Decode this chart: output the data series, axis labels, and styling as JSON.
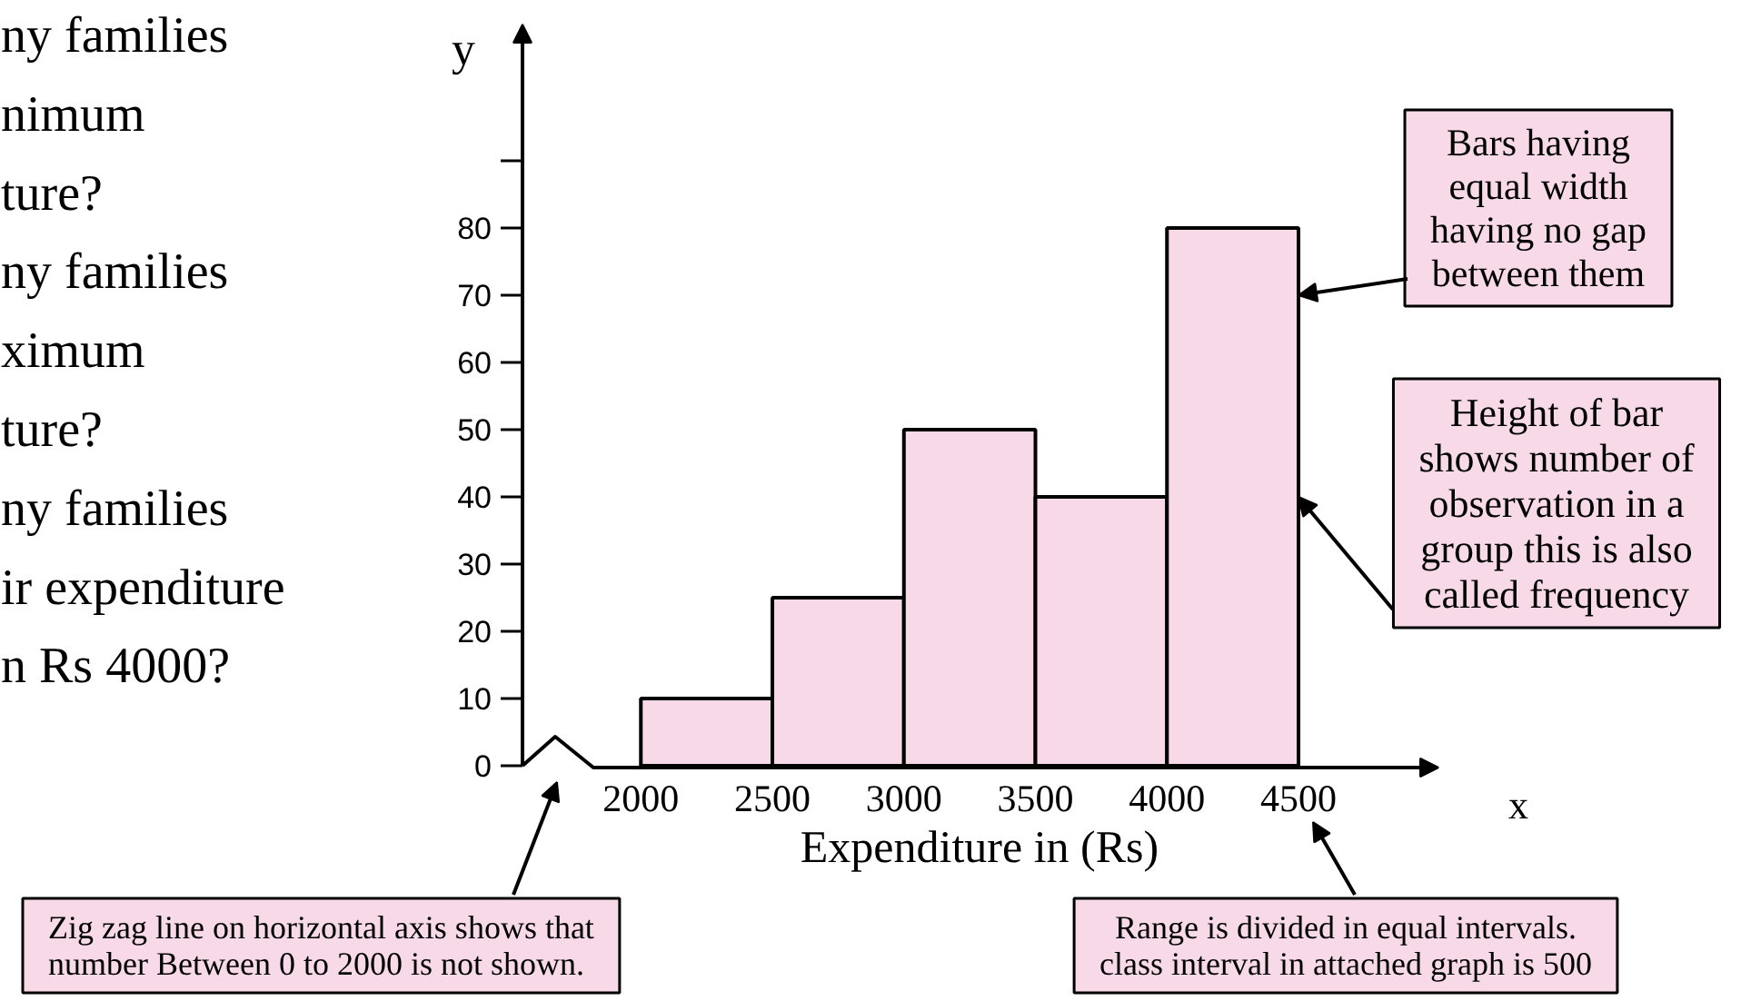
{
  "chart_data": {
    "type": "histogram",
    "xlabel": "Expenditure in (Rs)",
    "ylabel": "y",
    "bins": [
      2000,
      2500,
      3000,
      3500,
      4000,
      4500
    ],
    "values": [
      10,
      25,
      50,
      40,
      80
    ],
    "color": "#f7d9e7",
    "xlim": [
      1550,
      5025
    ],
    "ylim": [
      0,
      110
    ],
    "xticks": [
      2000,
      2500,
      3000,
      3500,
      4000,
      4500
    ],
    "yticks": [
      0,
      10,
      20,
      30,
      40,
      50,
      60,
      70,
      80,
      {
        "value": 90,
        "label": null
      }
    ],
    "grid": false,
    "annotations": [
      "ny families\nnimum\nture?\nny families\nximum\nture?\nny families\nir expenditure\nn Rs 4000?",
      {
        "text": "Bars having\nequal width\nhaving no gap\nbetween them",
        "x": 4500,
        "y": 70
      },
      {
        "text": "Height of bar\nshows number of\nobservation in a\ngroup this is also\ncalled frequency",
        "x": 4500,
        "y": 40
      },
      "Zig zag line on horizontal axis shows that\nnumber Between 0 to 2000 is not shown.",
      "Range is divided in equal intervals.\nclass interval in attached graph is 500",
      "x"
    ]
  }
}
